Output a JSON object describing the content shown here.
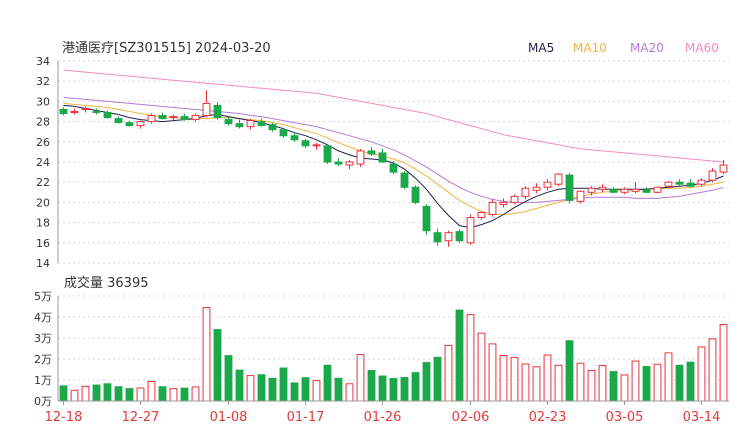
{
  "header": {
    "title": "港通医疗[SZ301515] 2024-03-20",
    "legend": [
      {
        "label": "MA5",
        "color": "#1f1f4f"
      },
      {
        "label": "MA10",
        "color": "#f5b342"
      },
      {
        "label": "MA20",
        "color": "#b57ad8"
      },
      {
        "label": "MA60",
        "color": "#f28dc0"
      }
    ]
  },
  "volume_header": {
    "label": "成交量 36395"
  },
  "colors": {
    "up": "#e8323c",
    "down": "#1aa84a",
    "grid": "#d8d8d8",
    "axis_text": "#333333",
    "date_text": "#e23b3b"
  },
  "chart_data": [
    {
      "type": "candlestick",
      "yticks": [
        14,
        16,
        18,
        20,
        22,
        24,
        26,
        28,
        30,
        32,
        34
      ],
      "ylim": [
        14,
        34
      ],
      "xtick_labels": [
        "12-18",
        "12-27",
        "01-08",
        "01-17",
        "01-26",
        "02-06",
        "02-23",
        "03-05",
        "03-14"
      ],
      "xtick_index": [
        0,
        7,
        15,
        22,
        29,
        37,
        44,
        51,
        58
      ],
      "candles": [
        [
          29.2,
          29.4,
          28.6,
          28.8
        ],
        [
          29.0,
          29.3,
          28.7,
          29.0
        ],
        [
          29.2,
          29.5,
          28.9,
          29.3
        ],
        [
          29.0,
          29.3,
          28.7,
          28.9
        ],
        [
          28.9,
          29.1,
          28.3,
          28.4
        ],
        [
          28.3,
          28.5,
          27.8,
          27.9
        ],
        [
          27.9,
          28.1,
          27.5,
          27.6
        ],
        [
          27.6,
          28.1,
          27.3,
          28.0
        ],
        [
          28.0,
          28.8,
          27.8,
          28.6
        ],
        [
          28.6,
          28.9,
          28.2,
          28.3
        ],
        [
          28.4,
          28.7,
          28.1,
          28.5
        ],
        [
          28.5,
          28.8,
          28.1,
          28.2
        ],
        [
          28.2,
          28.8,
          28.0,
          28.6
        ],
        [
          28.6,
          31.1,
          28.4,
          29.8
        ],
        [
          29.6,
          29.9,
          28.2,
          28.4
        ],
        [
          28.2,
          28.5,
          27.6,
          27.8
        ],
        [
          27.8,
          28.2,
          27.3,
          27.5
        ],
        [
          27.5,
          28.3,
          27.2,
          28.1
        ],
        [
          28.0,
          28.3,
          27.5,
          27.6
        ],
        [
          27.7,
          27.9,
          27.0,
          27.2
        ],
        [
          27.2,
          27.4,
          26.4,
          26.6
        ],
        [
          26.6,
          26.9,
          26.0,
          26.2
        ],
        [
          26.1,
          26.3,
          25.4,
          25.6
        ],
        [
          25.6,
          25.9,
          25.2,
          25.7
        ],
        [
          25.6,
          25.8,
          23.8,
          24.0
        ],
        [
          24.0,
          24.4,
          23.6,
          23.8
        ],
        [
          23.7,
          24.2,
          23.3,
          24.0
        ],
        [
          23.8,
          25.3,
          23.5,
          25.1
        ],
        [
          25.1,
          25.5,
          24.6,
          24.8
        ],
        [
          24.9,
          25.3,
          23.9,
          24.0
        ],
        [
          23.8,
          24.1,
          22.8,
          23.0
        ],
        [
          22.9,
          23.1,
          21.3,
          21.5
        ],
        [
          21.5,
          21.7,
          19.8,
          20.0
        ],
        [
          19.6,
          19.8,
          16.8,
          17.2
        ],
        [
          17.0,
          17.4,
          15.7,
          16.1
        ],
        [
          16.2,
          17.2,
          15.6,
          17.0
        ],
        [
          17.1,
          17.3,
          16.0,
          16.2
        ],
        [
          16.0,
          18.8,
          15.8,
          18.5
        ],
        [
          18.5,
          19.1,
          18.3,
          19.0
        ],
        [
          18.8,
          20.3,
          18.6,
          20.0
        ],
        [
          19.8,
          20.4,
          19.5,
          20.0
        ],
        [
          20.0,
          20.8,
          19.8,
          20.6
        ],
        [
          20.6,
          21.6,
          20.3,
          21.4
        ],
        [
          21.2,
          21.9,
          20.9,
          21.5
        ],
        [
          21.5,
          22.3,
          21.2,
          22.0
        ],
        [
          21.8,
          22.9,
          21.6,
          22.8
        ],
        [
          22.7,
          22.9,
          19.9,
          20.2
        ],
        [
          20.1,
          21.2,
          19.9,
          21.1
        ],
        [
          21.0,
          21.6,
          20.7,
          21.4
        ],
        [
          21.3,
          21.8,
          21.0,
          21.5
        ],
        [
          21.3,
          21.5,
          20.9,
          21.0
        ],
        [
          21.0,
          21.5,
          20.8,
          21.3
        ],
        [
          21.1,
          22.0,
          20.9,
          21.3
        ],
        [
          21.2,
          21.5,
          20.9,
          21.0
        ],
        [
          21.0,
          21.6,
          20.9,
          21.5
        ],
        [
          21.6,
          22.1,
          21.4,
          22.0
        ],
        [
          22.0,
          22.3,
          21.6,
          21.8
        ],
        [
          21.9,
          22.3,
          21.5,
          21.6
        ],
        [
          21.8,
          22.4,
          21.6,
          22.2
        ],
        [
          22.2,
          23.4,
          22.0,
          23.1
        ],
        [
          23.0,
          24.2,
          22.8,
          23.7
        ]
      ],
      "ma5": [
        29.6,
        29.5,
        29.3,
        29.1,
        28.9,
        28.7,
        28.4,
        28.2,
        28.1,
        28.0,
        28.1,
        28.2,
        28.3,
        28.6,
        28.7,
        28.5,
        28.3,
        28.1,
        27.9,
        27.6,
        27.3,
        26.9,
        26.6,
        26.2,
        25.7,
        25.1,
        24.7,
        24.4,
        24.3,
        24.2,
        23.9,
        23.3,
        22.4,
        21.3,
        19.9,
        18.7,
        17.7,
        17.5,
        17.8,
        18.2,
        18.8,
        19.5,
        20.1,
        20.6,
        21.0,
        21.3,
        21.4,
        21.4,
        21.4,
        21.3,
        21.3,
        21.3,
        21.3,
        21.3,
        21.4,
        21.5,
        21.6,
        21.7,
        21.9,
        22.2,
        22.6
      ],
      "ma10": [
        29.8,
        29.7,
        29.6,
        29.5,
        29.4,
        29.2,
        29.0,
        28.8,
        28.6,
        28.5,
        28.4,
        28.3,
        28.3,
        28.3,
        28.4,
        28.4,
        28.3,
        28.2,
        28.1,
        27.9,
        27.7,
        27.4,
        27.1,
        26.8,
        26.4,
        25.9,
        25.5,
        25.1,
        24.8,
        24.6,
        24.3,
        23.9,
        23.3,
        22.6,
        21.8,
        21.0,
        20.2,
        19.6,
        19.1,
        18.8,
        18.8,
        18.9,
        19.1,
        19.4,
        19.7,
        20.0,
        20.3,
        20.6,
        20.8,
        21.0,
        21.1,
        21.2,
        21.2,
        21.3,
        21.3,
        21.4,
        21.4,
        21.5,
        21.6,
        21.8,
        22.0
      ],
      "ma20": [
        30.4,
        30.3,
        30.2,
        30.1,
        30.0,
        29.9,
        29.8,
        29.7,
        29.6,
        29.5,
        29.4,
        29.3,
        29.2,
        29.1,
        29.0,
        28.9,
        28.8,
        28.6,
        28.5,
        28.3,
        28.1,
        27.9,
        27.7,
        27.5,
        27.2,
        26.9,
        26.6,
        26.3,
        26.0,
        25.6,
        25.2,
        24.7,
        24.1,
        23.5,
        22.8,
        22.1,
        21.5,
        21.0,
        20.6,
        20.3,
        20.1,
        20.0,
        20.0,
        20.0,
        20.1,
        20.2,
        20.3,
        20.4,
        20.5,
        20.5,
        20.5,
        20.5,
        20.4,
        20.4,
        20.4,
        20.5,
        20.6,
        20.8,
        21.0,
        21.2,
        21.5
      ],
      "ma60": [
        33.1,
        33.0,
        32.9,
        32.8,
        32.7,
        32.6,
        32.5,
        32.4,
        32.3,
        32.2,
        32.1,
        32.0,
        31.9,
        31.8,
        31.7,
        31.6,
        31.5,
        31.4,
        31.3,
        31.2,
        31.1,
        31.0,
        30.9,
        30.8,
        30.6,
        30.4,
        30.2,
        30.0,
        29.8,
        29.6,
        29.4,
        29.2,
        29.0,
        28.8,
        28.5,
        28.2,
        27.9,
        27.6,
        27.3,
        27.0,
        26.7,
        26.5,
        26.3,
        26.1,
        25.9,
        25.7,
        25.5,
        25.3,
        25.2,
        25.1,
        25.0,
        24.9,
        24.8,
        24.7,
        24.6,
        24.5,
        24.4,
        24.3,
        24.2,
        24.1,
        24.0
      ]
    },
    {
      "type": "bar",
      "title": "成交量 36395",
      "yticks": [
        "0万",
        "1万",
        "2万",
        "3万",
        "4万",
        "5万"
      ],
      "ylim": [
        0,
        50000
      ],
      "values": [
        7200,
        5100,
        7000,
        7600,
        8200,
        6800,
        5900,
        6200,
        9300,
        6800,
        5900,
        6100,
        6700,
        44500,
        34000,
        21600,
        14700,
        12100,
        12500,
        10800,
        15700,
        8600,
        11100,
        9700,
        17000,
        10800,
        8200,
        22100,
        14500,
        11900,
        10700,
        11200,
        13500,
        18300,
        20800,
        26500,
        43300,
        41100,
        32300,
        27200,
        21700,
        20700,
        17600,
        16300,
        21900,
        17000,
        28700,
        18000,
        14500,
        16900,
        14000,
        12400,
        19000,
        16400,
        17500,
        22900,
        17000,
        18500,
        25700,
        29600,
        36400
      ]
    }
  ]
}
